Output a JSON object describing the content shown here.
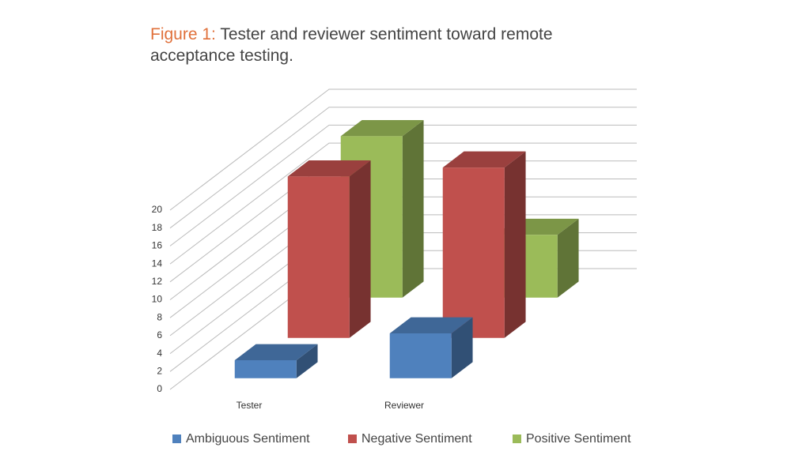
{
  "chart_data": {
    "type": "bar3d",
    "label": "Figure 1:",
    "title": "Tester and reviewer sentiment toward remote acceptance testing.",
    "categories": [
      "Tester",
      "Reviewer"
    ],
    "series": [
      {
        "name": "Ambiguous Sentiment",
        "color": "#4f81bd",
        "values": [
          2,
          5
        ]
      },
      {
        "name": "Negative Sentiment",
        "color": "#c0504d",
        "values": [
          18,
          19
        ]
      },
      {
        "name": "Positive Sentiment",
        "color": "#9bbb59",
        "values": [
          18,
          7
        ]
      }
    ],
    "ylim": [
      0,
      20
    ],
    "yticks": [
      0,
      2,
      4,
      6,
      8,
      10,
      12,
      14,
      16,
      18,
      20
    ],
    "grid": true,
    "label_color": "#e0703a",
    "legend": "bottom"
  }
}
